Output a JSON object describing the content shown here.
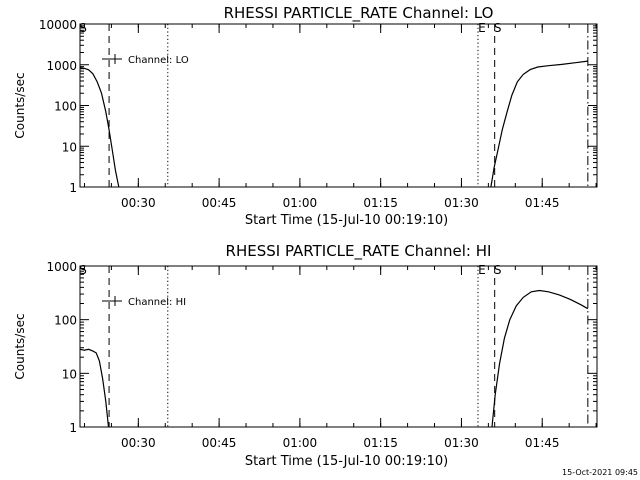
{
  "footer_timestamp": "15-Oct-2021 09:45",
  "chart_data": [
    {
      "type": "line",
      "title": "RHESSI PARTICLE_RATE Channel: LO",
      "xlabel": "Start Time (15-Jul-10 00:19:10)",
      "ylabel": "Counts/sec",
      "yscale": "log",
      "ylim": [
        1,
        10000
      ],
      "xlim_minutes_after_start": [
        0,
        96
      ],
      "x_tick_labels": [
        "00:30",
        "00:45",
        "01:00",
        "01:15",
        "01:30",
        "01:45"
      ],
      "x_tick_minutes": [
        10.83,
        25.83,
        40.83,
        55.83,
        70.83,
        85.83
      ],
      "y_tick_labels": [
        "1",
        "10",
        "100",
        "1000",
        "10000"
      ],
      "y_tick_values": [
        1,
        10,
        100,
        1000,
        10000
      ],
      "legend": [
        "Channel: LO"
      ],
      "legend_position": "top-left",
      "markers": [
        {
          "label": "S",
          "minute": 0,
          "style": "solid"
        },
        {
          "label": "",
          "minute": 5.4,
          "style": "dashed"
        },
        {
          "label": "",
          "minute": 16.3,
          "style": "dotted"
        },
        {
          "label": "E",
          "minute": 73.9,
          "style": "dotted"
        },
        {
          "label": "S",
          "minute": 77.0,
          "style": "dashed"
        },
        {
          "label": "",
          "minute": 94.3,
          "style": "dashdot"
        }
      ],
      "series": [
        {
          "name": "Channel: LO",
          "segments": [
            [
              [
                0,
                850
              ],
              [
                0.8,
                820
              ],
              [
                1.6,
                750
              ],
              [
                2.4,
                600
              ],
              [
                3.2,
                380
              ],
              [
                4.0,
                200
              ],
              [
                4.8,
                70
              ],
              [
                5.4,
                25
              ],
              [
                6.0,
                8
              ],
              [
                6.6,
                2.5
              ],
              [
                7.2,
                1
              ]
            ],
            [
              [
                76.3,
                1
              ],
              [
                76.9,
                3
              ],
              [
                77.6,
                8
              ],
              [
                78.4,
                25
              ],
              [
                79.3,
                70
              ],
              [
                80.2,
                180
              ],
              [
                81.2,
                380
              ],
              [
                82.3,
                580
              ],
              [
                83.6,
                760
              ],
              [
                85.0,
                880
              ],
              [
                87.0,
                950
              ],
              [
                89.5,
                1020
              ],
              [
                92.0,
                1120
              ],
              [
                94.3,
                1230
              ]
            ]
          ]
        }
      ]
    },
    {
      "type": "line",
      "title": "RHESSI PARTICLE_RATE Channel: HI",
      "xlabel": "Start Time (15-Jul-10 00:19:10)",
      "ylabel": "Counts/sec",
      "yscale": "log",
      "ylim": [
        1,
        1000
      ],
      "xlim_minutes_after_start": [
        0,
        96
      ],
      "x_tick_labels": [
        "00:30",
        "00:45",
        "01:00",
        "01:15",
        "01:30",
        "01:45"
      ],
      "x_tick_minutes": [
        10.83,
        25.83,
        40.83,
        55.83,
        70.83,
        85.83
      ],
      "y_tick_labels": [
        "1",
        "10",
        "100",
        "1000"
      ],
      "y_tick_values": [
        1,
        10,
        100,
        1000
      ],
      "legend": [
        "Channel: HI"
      ],
      "legend_position": "top-left",
      "markers": [
        {
          "label": "S",
          "minute": 0,
          "style": "solid"
        },
        {
          "label": "",
          "minute": 5.4,
          "style": "dashed"
        },
        {
          "label": "",
          "minute": 16.3,
          "style": "dotted"
        },
        {
          "label": "E",
          "minute": 73.9,
          "style": "dotted"
        },
        {
          "label": "S",
          "minute": 77.0,
          "style": "dashed"
        },
        {
          "label": "",
          "minute": 94.3,
          "style": "dashdot"
        }
      ],
      "series": [
        {
          "name": "Channel: HI",
          "segments": [
            [
              [
                0,
                28
              ],
              [
                0.8,
                27
              ],
              [
                1.6,
                28
              ],
              [
                2.4,
                26
              ],
              [
                3.0,
                24
              ],
              [
                3.6,
                17
              ],
              [
                4.2,
                8
              ],
              [
                4.8,
                3
              ],
              [
                5.3,
                1
              ]
            ],
            [
              [
                76.5,
                1
              ],
              [
                77.1,
                4
              ],
              [
                77.9,
                15
              ],
              [
                78.8,
                45
              ],
              [
                79.8,
                100
              ],
              [
                81.0,
                180
              ],
              [
                82.3,
                260
              ],
              [
                83.8,
                330
              ],
              [
                85.3,
                350
              ],
              [
                87.0,
                330
              ],
              [
                89.0,
                290
              ],
              [
                91.0,
                240
              ],
              [
                93.0,
                190
              ],
              [
                94.3,
                160
              ]
            ]
          ]
        }
      ]
    }
  ]
}
